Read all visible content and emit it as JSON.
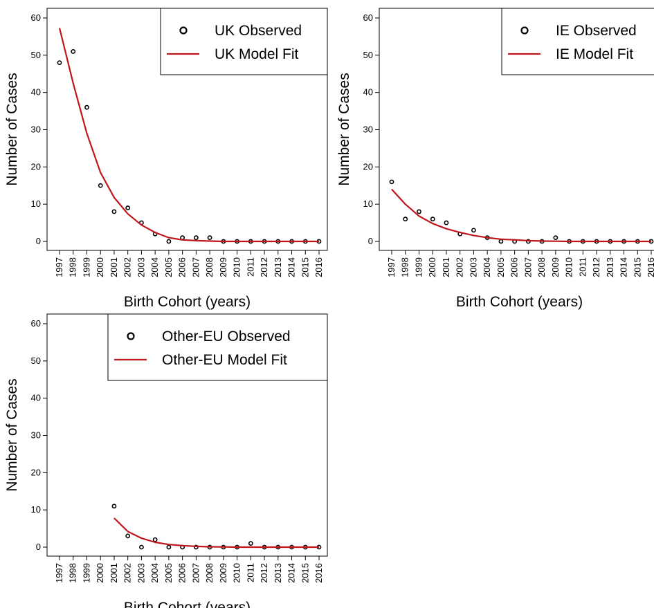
{
  "chart_data": [
    {
      "type": "scatter",
      "xlabel": "Birth Cohort (years)",
      "ylabel": "Number of Cases",
      "ylim": [
        0,
        60
      ],
      "yticks": [
        0,
        10,
        20,
        30,
        40,
        50,
        60
      ],
      "categories": [
        "1997",
        "1998",
        "1999",
        "2000",
        "2001",
        "2002",
        "2003",
        "2004",
        "2005",
        "2006",
        "2007",
        "2008",
        "2009",
        "2010",
        "2011",
        "2012",
        "2013",
        "2014",
        "2015",
        "2016"
      ],
      "legend_position": "top-right",
      "series": [
        {
          "name": "UK Observed",
          "kind": "points",
          "color": "#000000",
          "values": [
            48,
            51,
            36,
            15,
            8,
            9,
            5,
            2,
            0,
            1,
            1,
            1,
            0,
            0,
            0,
            0,
            0,
            0,
            0,
            0
          ]
        },
        {
          "name": "UK Model Fit",
          "kind": "line",
          "color": "#c0151b",
          "values": [
            57.3,
            42.5,
            29.0,
            18.5,
            11.8,
            7.4,
            4.4,
            2.4,
            1.0,
            0.4,
            0.2,
            0.1,
            0,
            0,
            0,
            0,
            0,
            0,
            0,
            0
          ]
        }
      ]
    },
    {
      "type": "scatter",
      "xlabel": "Birth Cohort (years)",
      "ylabel": "Number of Cases",
      "ylim": [
        0,
        60
      ],
      "yticks": [
        0,
        10,
        20,
        30,
        40,
        50,
        60
      ],
      "categories": [
        "1997",
        "1998",
        "1999",
        "2000",
        "2001",
        "2002",
        "2003",
        "2004",
        "2005",
        "2006",
        "2007",
        "2008",
        "2009",
        "2010",
        "2011",
        "2012",
        "2013",
        "2014",
        "2015",
        "2016"
      ],
      "legend_position": "top-right",
      "series": [
        {
          "name": "IE Observed",
          "kind": "points",
          "color": "#000000",
          "values": [
            16,
            6,
            8,
            6,
            5,
            2,
            3,
            1,
            0,
            0,
            0,
            0,
            1,
            0,
            0,
            0,
            0,
            0,
            0,
            0
          ]
        },
        {
          "name": "IE Model Fit",
          "kind": "line",
          "color": "#c0151b",
          "values": [
            14.0,
            10.0,
            6.8,
            4.8,
            3.4,
            2.4,
            1.6,
            1.0,
            0.6,
            0.4,
            0.2,
            0.1,
            0.05,
            0,
            0,
            0,
            0,
            0,
            0,
            0
          ]
        }
      ]
    },
    {
      "type": "scatter",
      "xlabel": "Birth Cohort (years)",
      "ylabel": "Number of Cases",
      "ylim": [
        0,
        60
      ],
      "yticks": [
        0,
        10,
        20,
        30,
        40,
        50,
        60
      ],
      "categories": [
        "1997",
        "1998",
        "1999",
        "2000",
        "2001",
        "2002",
        "2003",
        "2004",
        "2005",
        "2006",
        "2007",
        "2008",
        "2009",
        "2010",
        "2011",
        "2012",
        "2013",
        "2014",
        "2015",
        "2016"
      ],
      "legend_position": "top-right",
      "series": [
        {
          "name": "Other-EU Observed",
          "kind": "points",
          "color": "#000000",
          "values": [
            null,
            null,
            null,
            null,
            11,
            3,
            0,
            2,
            0,
            0,
            0,
            0,
            0,
            0,
            1,
            0,
            0,
            0,
            0,
            0
          ]
        },
        {
          "name": "Other-EU Model Fit",
          "kind": "line",
          "color": "#c0151b",
          "values": [
            null,
            null,
            null,
            null,
            7.8,
            4.2,
            2.4,
            1.3,
            0.7,
            0.4,
            0.2,
            0.1,
            0.05,
            0,
            0,
            0,
            0,
            0,
            0,
            0
          ]
        }
      ]
    }
  ]
}
